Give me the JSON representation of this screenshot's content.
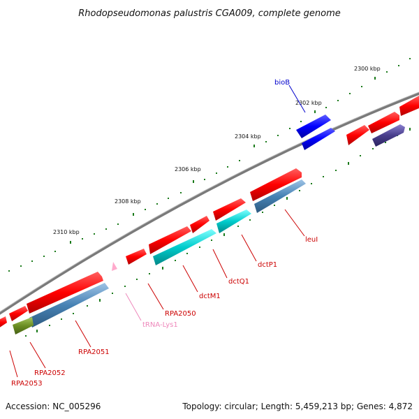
{
  "title": "Rhodopseudomonas palustris CGA009, complete genome",
  "footer": {
    "accession": "Accession: NC_005296",
    "summary": "Topology: circular; Length: 5,459,213 bp; Genes: 4,872"
  },
  "scale_labels": [
    "2300 kbp",
    "2302 kbp",
    "2304 kbp",
    "2306 kbp",
    "2308 kbp",
    "2310 kbp"
  ],
  "genes": [
    {
      "name": "bioB",
      "color": "#0000cc"
    },
    {
      "name": "leuI",
      "color": "#cc0000"
    },
    {
      "name": "dctP1",
      "color": "#cc0000"
    },
    {
      "name": "dctQ1",
      "color": "#cc0000"
    },
    {
      "name": "dctM1",
      "color": "#cc0000"
    },
    {
      "name": "RPA2050",
      "color": "#cc0000"
    },
    {
      "name": "tRNA-Lys1",
      "color": "#ee88bb"
    },
    {
      "name": "RPA2051",
      "color": "#cc0000"
    },
    {
      "name": "RPA2052",
      "color": "#cc0000"
    },
    {
      "name": "RPA2053",
      "color": "#cc0000"
    }
  ],
  "colors": {
    "backbone": "#8a8a8a",
    "cds": "#ff0000",
    "cds_alt_blue": "#0000ff",
    "cds_steelblue": "#4682b4",
    "cds_cyan": "#00cccc",
    "cds_darkslate": "#483d8b",
    "cds_olive": "#6b8e23",
    "trna": "#ffaacc",
    "ticks": "#1a7a1a"
  }
}
